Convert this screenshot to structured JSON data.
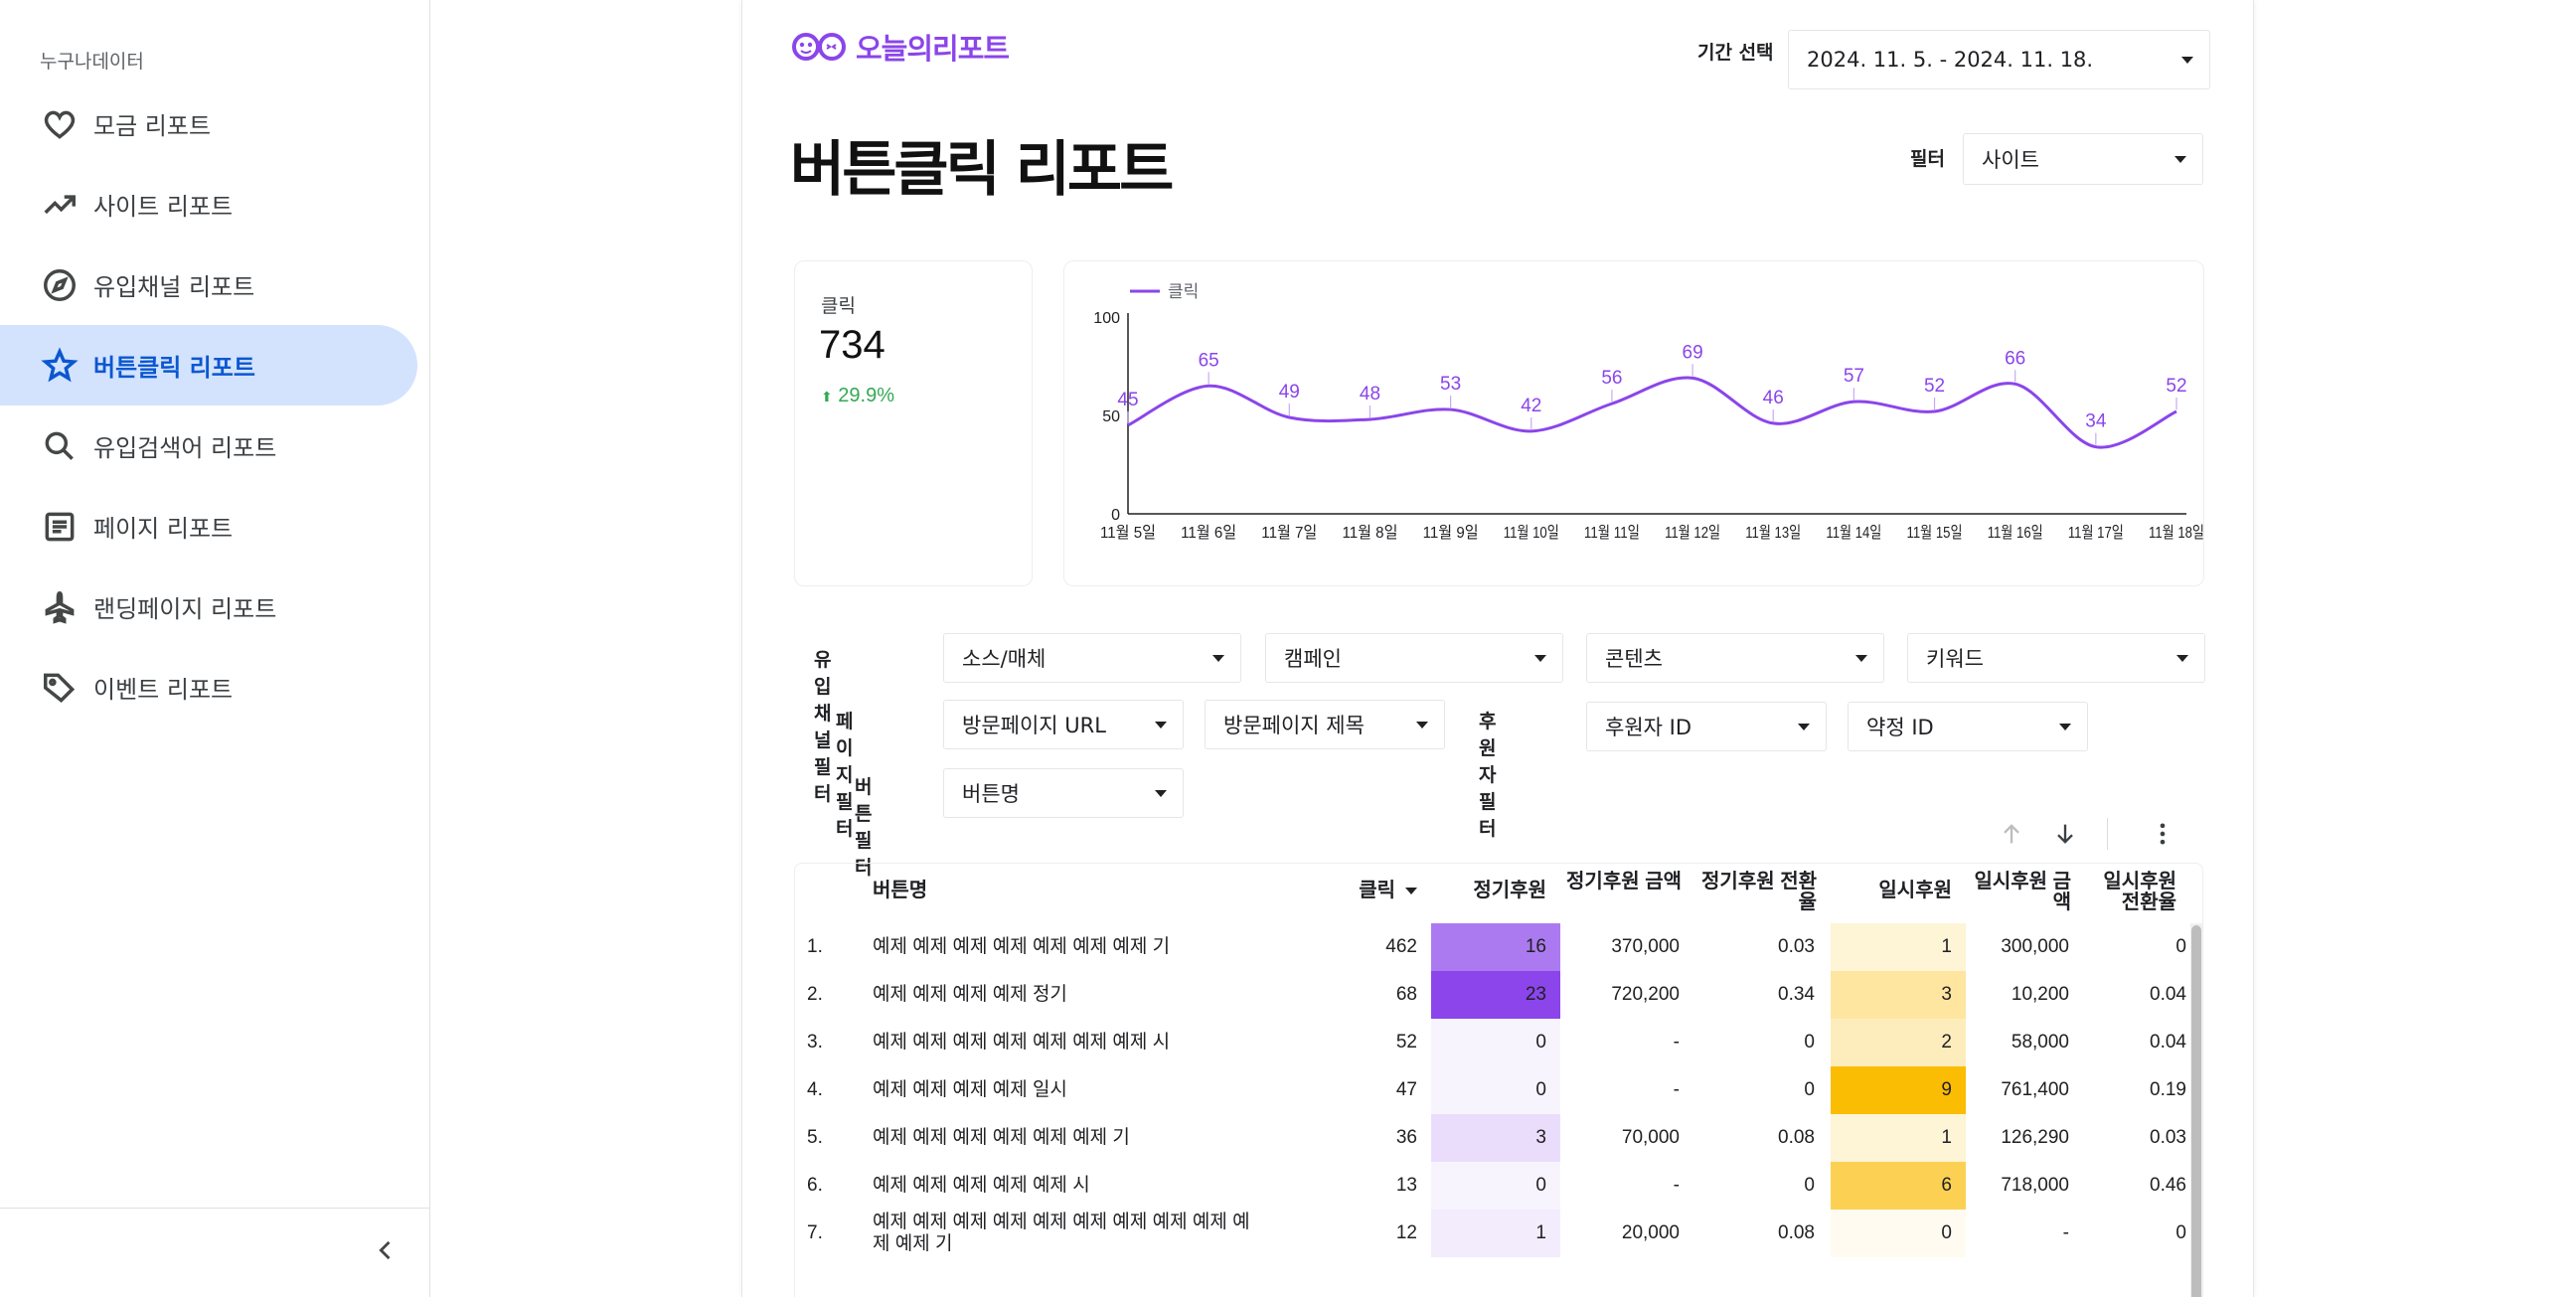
{
  "sidebar": {
    "org_name": "누구나데이터",
    "items": [
      {
        "label": "모금 리포트",
        "icon": "heart-icon"
      },
      {
        "label": "사이트 리포트",
        "icon": "trending-up-icon"
      },
      {
        "label": "유입채널 리포트",
        "icon": "compass-icon"
      },
      {
        "label": "버튼클릭 리포트",
        "icon": "star-icon",
        "active": true
      },
      {
        "label": "유입검색어 리포트",
        "icon": "search-icon"
      },
      {
        "label": "페이지 리포트",
        "icon": "article-icon"
      },
      {
        "label": "랜딩페이지 리포트",
        "icon": "airplane-icon"
      },
      {
        "label": "이벤트 리포트",
        "icon": "tag-icon"
      }
    ],
    "collapse_icon": "chevron-left-icon"
  },
  "header": {
    "logo_text": "오늘의리포트",
    "brand_color": "#8b45ea",
    "period_label": "기간 선택",
    "period_value": "2024. 11. 5. - 2024. 11. 18.",
    "filter_label": "필터",
    "filter_value": "사이트"
  },
  "report_title": "버튼클릭 리포트",
  "scorecard": {
    "label": "클릭",
    "value": "734",
    "delta": "29.9%",
    "delta_color": "#34a853"
  },
  "chart_data": {
    "type": "line",
    "legend": [
      "클릭"
    ],
    "legend_position": "top-left",
    "x": [
      "11월 5일",
      "11월 6일",
      "11월 7일",
      "11월 8일",
      "11월 9일",
      "11월 10일",
      "11월 11일",
      "11월 12일",
      "11월 13일",
      "11월 14일",
      "11월 15일",
      "11월 16일",
      "11월 17일",
      "11월 18일"
    ],
    "series": [
      {
        "name": "클릭",
        "values": [
          45,
          65,
          49,
          48,
          53,
          42,
          56,
          69,
          46,
          57,
          52,
          66,
          34,
          52
        ],
        "color": "#8b45ea"
      }
    ],
    "y_ticks": [
      "0",
      "50",
      "100"
    ],
    "ylim": [
      0,
      100
    ],
    "grid": false,
    "data_labels": true
  },
  "filters": {
    "channel": {
      "label": "유입채널 필터",
      "dropdowns": [
        "소스/매체",
        "캠페인",
        "콘텐츠",
        "키워드"
      ]
    },
    "page": {
      "label": "페이지 필터",
      "dropdowns": [
        "방문페이지 URL",
        "방문페이지 제목"
      ]
    },
    "donor": {
      "label": "후원자 필터",
      "dropdowns": [
        "후원자 ID",
        "약정 ID"
      ]
    },
    "button": {
      "label": "버튼 필터",
      "dropdowns": [
        "버튼명"
      ]
    }
  },
  "table_toolbar": {
    "icons": [
      "arrow-up-icon",
      "arrow-down-icon",
      "more-vert-icon"
    ]
  },
  "table": {
    "columns": [
      "버튼명",
      "클릭",
      "정기후원",
      "정기후원 금액",
      "정기후원 전환율",
      "일시후원",
      "일시후원 금액",
      "일시후원 전환율"
    ],
    "sort_indicator": "sort-desc-icon",
    "regular_heat_color": "#8b45ea",
    "onetime_heat_color": "#fbbc04",
    "regular_max": 23,
    "onetime_max": 9,
    "rows": [
      {
        "rank": "1.",
        "name": "예제 예제 예제 예제 예제 예제 예제 기",
        "clicks": "462",
        "regular": 16,
        "regular_amount": "370,000",
        "regular_rate": "0.03",
        "onetime": 1,
        "onetime_amount": "300,000",
        "onetime_rate": "0"
      },
      {
        "rank": "2.",
        "name": "예제 예제 예제 예제 정기",
        "clicks": "68",
        "regular": 23,
        "regular_amount": "720,200",
        "regular_rate": "0.34",
        "onetime": 3,
        "onetime_amount": "10,200",
        "onetime_rate": "0.04"
      },
      {
        "rank": "3.",
        "name": "예제 예제 예제 예제 예제 예제 예제 시",
        "clicks": "52",
        "regular": 0,
        "regular_amount": "-",
        "regular_rate": "0",
        "onetime": 2,
        "onetime_amount": "58,000",
        "onetime_rate": "0.04"
      },
      {
        "rank": "4.",
        "name": "예제 예제 예제 예제 일시",
        "clicks": "47",
        "regular": 0,
        "regular_amount": "-",
        "regular_rate": "0",
        "onetime": 9,
        "onetime_amount": "761,400",
        "onetime_rate": "0.19"
      },
      {
        "rank": "5.",
        "name": "예제 예제 예제 예제 예제 예제 기",
        "clicks": "36",
        "regular": 3,
        "regular_amount": "70,000",
        "regular_rate": "0.08",
        "onetime": 1,
        "onetime_amount": "126,290",
        "onetime_rate": "0.03"
      },
      {
        "rank": "6.",
        "name": "예제 예제 예제 예제 예제 시",
        "clicks": "13",
        "regular": 0,
        "regular_amount": "-",
        "regular_rate": "0",
        "onetime": 6,
        "onetime_amount": "718,000",
        "onetime_rate": "0.46"
      },
      {
        "rank": "7.",
        "name": "예제 예제 예제 예제 예제 예제 예제 예제 예제 예제 예제 기",
        "clicks": "12",
        "regular": 1,
        "regular_amount": "20,000",
        "regular_rate": "0.08",
        "onetime": 0,
        "onetime_amount": "-",
        "onetime_rate": "0"
      }
    ]
  }
}
